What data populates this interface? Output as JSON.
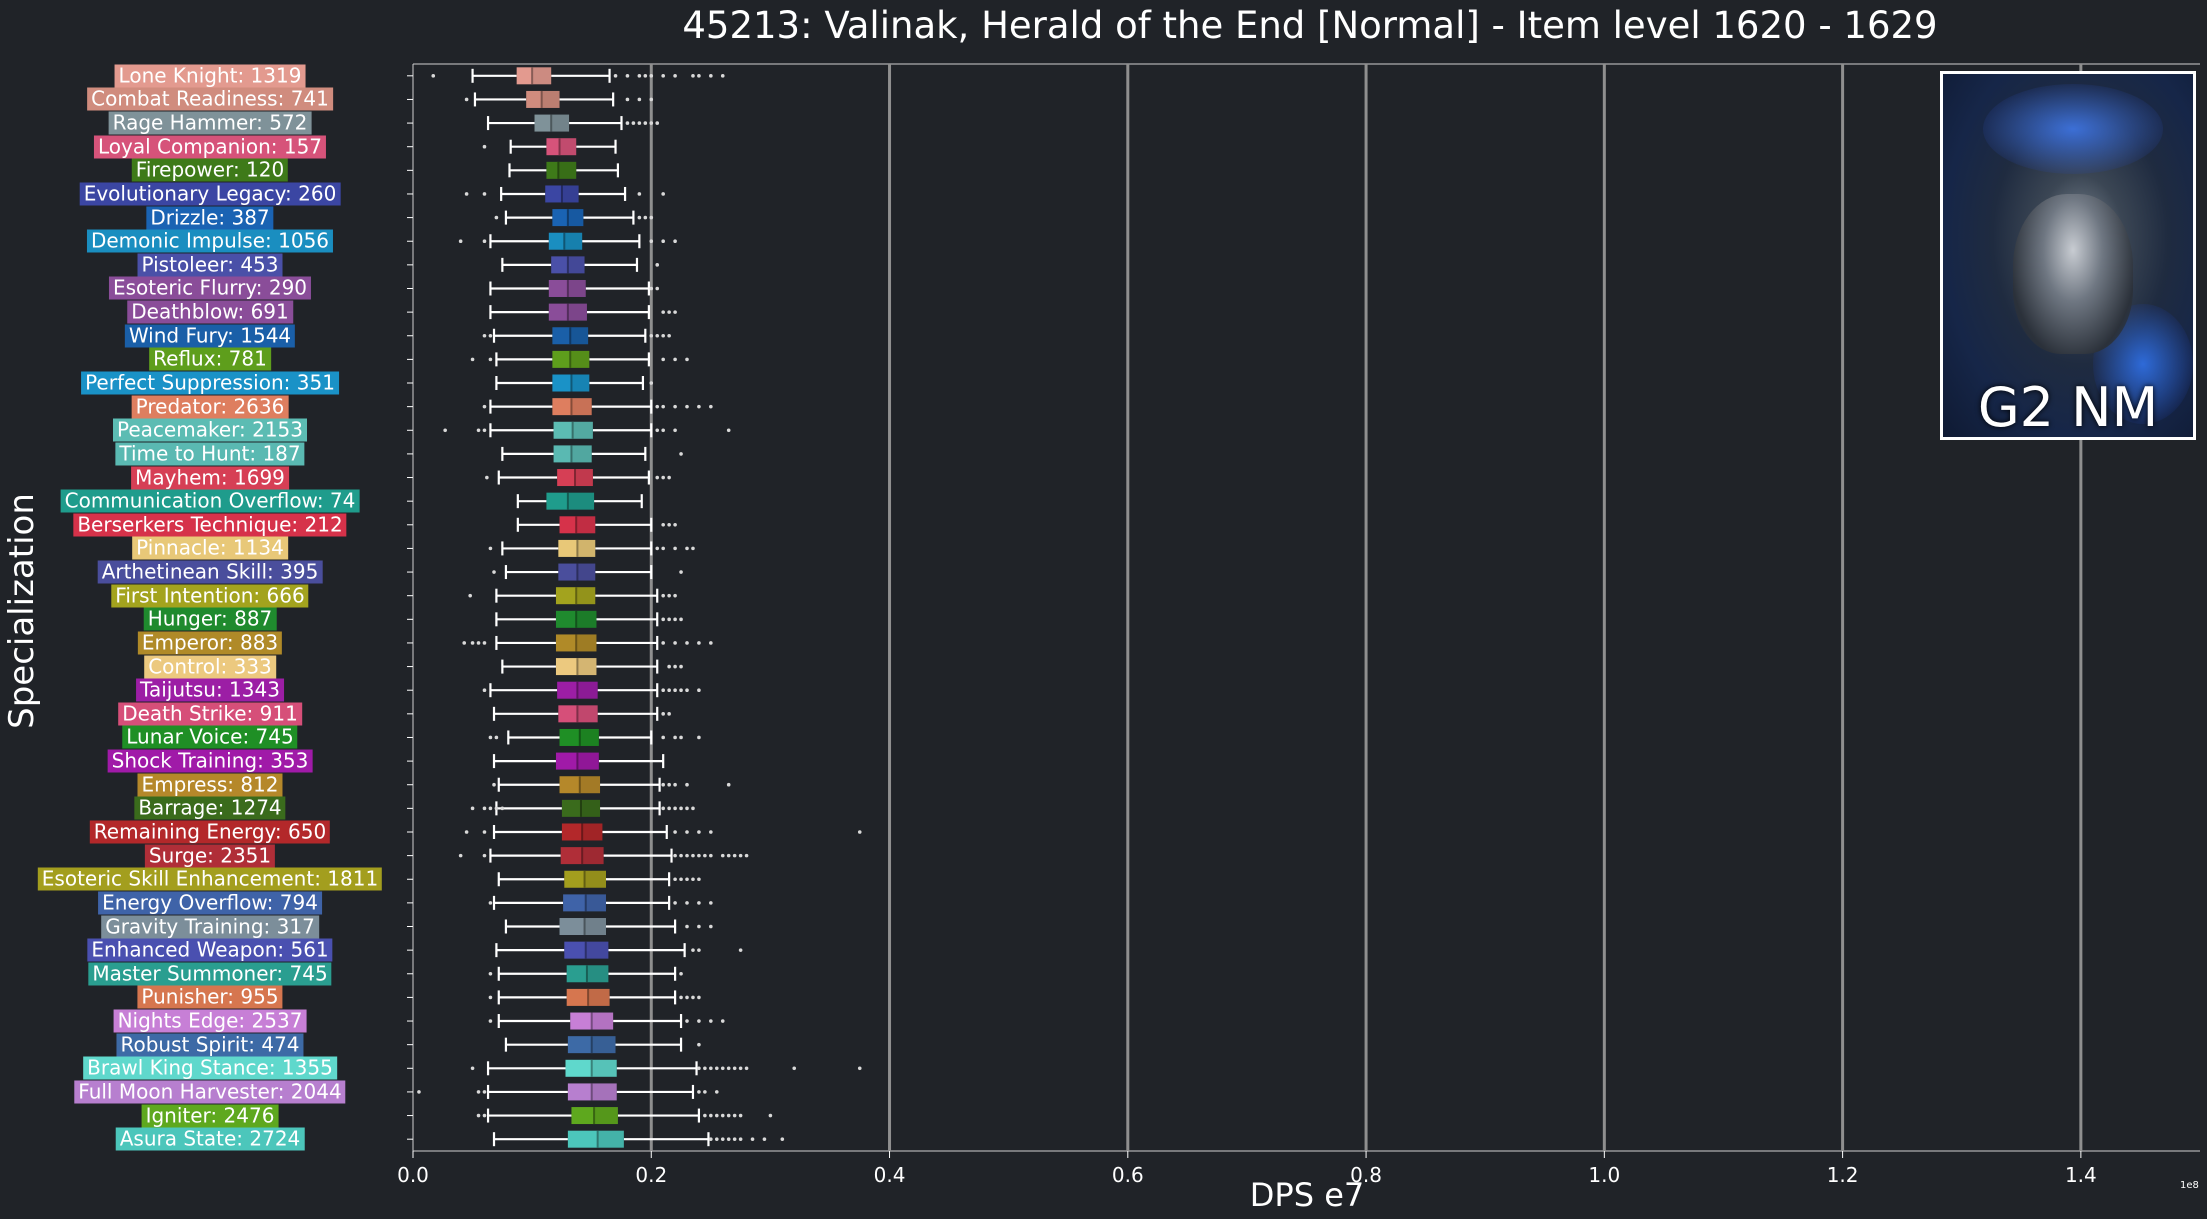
{
  "chart_data": {
    "type": "boxplot",
    "title": "45213: Valinak, Herald of the End [Normal] - Item level 1620 - 1629",
    "xlabel": "DPS e7",
    "ylabel": "Specialization",
    "x_exponent_label": "1e8",
    "xlim": [
      0,
      1.5
    ],
    "xticks": [
      0.0,
      0.2,
      0.4,
      0.6,
      0.8,
      1.0,
      1.2,
      1.4
    ],
    "xtick_labels": [
      "0.0",
      "0.2",
      "0.4",
      "0.6",
      "0.8",
      "1.0",
      "1.2",
      "1.4"
    ],
    "grid": "vertical lines at ticks",
    "categories": [
      {
        "label": "Lone Knight: 1319",
        "color": "#e39a8f",
        "whislo": 0.05,
        "q1": 0.087,
        "med": 0.1,
        "q3": 0.116,
        "whishi": 0.165,
        "outliers": [
          0.017,
          0.17,
          0.18,
          0.19,
          0.195,
          0.2,
          0.21,
          0.22,
          0.235,
          0.24,
          0.25,
          0.26
        ]
      },
      {
        "label": "Combat Readiness: 741",
        "color": "#d08c7e",
        "whislo": 0.052,
        "q1": 0.095,
        "med": 0.108,
        "q3": 0.123,
        "whishi": 0.168,
        "outliers": [
          0.045,
          0.18,
          0.19,
          0.2
        ]
      },
      {
        "label": "Rage Hammer: 572",
        "color": "#7f9299",
        "whislo": 0.063,
        "q1": 0.102,
        "med": 0.116,
        "q3": 0.131,
        "whishi": 0.175,
        "outliers": [
          0.18,
          0.185,
          0.19,
          0.195,
          0.2,
          0.205
        ]
      },
      {
        "label": "Loyal Companion: 157",
        "color": "#d6537a",
        "whislo": 0.082,
        "q1": 0.112,
        "med": 0.123,
        "q3": 0.137,
        "whishi": 0.17,
        "outliers": [
          0.06
        ]
      },
      {
        "label": "Firepower: 120",
        "color": "#3e7a19",
        "whislo": 0.081,
        "q1": 0.112,
        "med": 0.122,
        "q3": 0.137,
        "whishi": 0.172,
        "outliers": []
      },
      {
        "label": "Evolutionary Legacy: 260",
        "color": "#3b46a3",
        "whislo": 0.074,
        "q1": 0.111,
        "med": 0.125,
        "q3": 0.139,
        "whishi": 0.178,
        "outliers": [
          0.045,
          0.06,
          0.19,
          0.21
        ]
      },
      {
        "label": "Drizzle: 387",
        "color": "#1a63b3",
        "whislo": 0.078,
        "q1": 0.117,
        "med": 0.13,
        "q3": 0.143,
        "whishi": 0.185,
        "outliers": [
          0.07,
          0.19,
          0.195,
          0.2
        ]
      },
      {
        "label": "Demonic Impulse: 1056",
        "color": "#1a8ec0",
        "whislo": 0.065,
        "q1": 0.114,
        "med": 0.127,
        "q3": 0.142,
        "whishi": 0.19,
        "outliers": [
          0.04,
          0.06,
          0.2,
          0.21,
          0.22
        ]
      },
      {
        "label": "Pistoleer: 453",
        "color": "#4a50a8",
        "whislo": 0.075,
        "q1": 0.116,
        "med": 0.13,
        "q3": 0.144,
        "whishi": 0.188,
        "outliers": [
          0.205
        ]
      },
      {
        "label": "Esoteric Flurry: 290",
        "color": "#8a4d99",
        "whislo": 0.065,
        "q1": 0.114,
        "med": 0.13,
        "q3": 0.145,
        "whishi": 0.198,
        "outliers": [
          0.2,
          0.205
        ]
      },
      {
        "label": "Deathblow: 691",
        "color": "#8a4d99",
        "whislo": 0.065,
        "q1": 0.114,
        "med": 0.13,
        "q3": 0.146,
        "whishi": 0.198,
        "outliers": [
          0.21,
          0.215,
          0.22
        ]
      },
      {
        "label": "Wind Fury: 1544",
        "color": "#1a5fa8",
        "whislo": 0.068,
        "q1": 0.117,
        "med": 0.132,
        "q3": 0.147,
        "whishi": 0.195,
        "outliers": [
          0.06,
          0.065,
          0.2,
          0.205,
          0.21,
          0.215
        ]
      },
      {
        "label": "Reflux: 781",
        "color": "#5e9e1c",
        "whislo": 0.07,
        "q1": 0.117,
        "med": 0.132,
        "q3": 0.148,
        "whishi": 0.198,
        "outliers": [
          0.05,
          0.065,
          0.21,
          0.22,
          0.23
        ]
      },
      {
        "label": "Perfect Suppression: 351",
        "color": "#1a92c7",
        "whislo": 0.07,
        "q1": 0.117,
        "med": 0.133,
        "q3": 0.148,
        "whishi": 0.193,
        "outliers": [
          0.2
        ]
      },
      {
        "label": "Predator: 2636",
        "color": "#de7e5f",
        "whislo": 0.065,
        "q1": 0.117,
        "med": 0.133,
        "q3": 0.15,
        "whishi": 0.2,
        "outliers": [
          0.06,
          0.205,
          0.21,
          0.22,
          0.23,
          0.24,
          0.25
        ]
      },
      {
        "label": "Peacemaker: 2153",
        "color": "#5cbcb3",
        "whislo": 0.065,
        "q1": 0.118,
        "med": 0.134,
        "q3": 0.151,
        "whishi": 0.2,
        "outliers": [
          0.027,
          0.055,
          0.06,
          0.205,
          0.21,
          0.22,
          0.265
        ]
      },
      {
        "label": "Time to Hunt: 187",
        "color": "#5ab9b2",
        "whislo": 0.075,
        "q1": 0.118,
        "med": 0.133,
        "q3": 0.15,
        "whishi": 0.195,
        "outliers": [
          0.225
        ]
      },
      {
        "label": "Mayhem: 1699",
        "color": "#d63f55",
        "whislo": 0.072,
        "q1": 0.121,
        "med": 0.136,
        "q3": 0.151,
        "whishi": 0.198,
        "outliers": [
          0.062,
          0.205,
          0.21,
          0.215
        ]
      },
      {
        "label": "Communication Overflow: 74",
        "color": "#1f9c8c",
        "whislo": 0.088,
        "q1": 0.112,
        "med": 0.13,
        "q3": 0.152,
        "whishi": 0.192,
        "outliers": []
      },
      {
        "label": "Berserkers Technique: 212",
        "color": "#d6324a",
        "whislo": 0.088,
        "q1": 0.123,
        "med": 0.137,
        "q3": 0.153,
        "whishi": 0.2,
        "outliers": [
          0.21,
          0.215,
          0.22
        ]
      },
      {
        "label": "Pinnacle: 1134",
        "color": "#e8c878",
        "whislo": 0.075,
        "q1": 0.122,
        "med": 0.138,
        "q3": 0.153,
        "whishi": 0.2,
        "outliers": [
          0.065,
          0.205,
          0.21,
          0.22,
          0.23,
          0.235
        ]
      },
      {
        "label": "Arthetinean Skill: 395",
        "color": "#4a4e9c",
        "whislo": 0.078,
        "q1": 0.122,
        "med": 0.138,
        "q3": 0.153,
        "whishi": 0.2,
        "outliers": [
          0.068,
          0.225
        ]
      },
      {
        "label": "First Intention: 666",
        "color": "#a3a31e",
        "whislo": 0.07,
        "q1": 0.12,
        "med": 0.137,
        "q3": 0.153,
        "whishi": 0.205,
        "outliers": [
          0.048,
          0.21,
          0.215,
          0.22
        ]
      },
      {
        "label": "Hunger: 887",
        "color": "#1f8a2e",
        "whislo": 0.07,
        "q1": 0.12,
        "med": 0.137,
        "q3": 0.154,
        "whishi": 0.205,
        "outliers": [
          0.21,
          0.215,
          0.22,
          0.225
        ]
      },
      {
        "label": "Emperor: 883",
        "color": "#b08a28",
        "whislo": 0.07,
        "q1": 0.12,
        "med": 0.137,
        "q3": 0.154,
        "whishi": 0.205,
        "outliers": [
          0.043,
          0.05,
          0.055,
          0.06,
          0.21,
          0.22,
          0.23,
          0.24,
          0.25
        ]
      },
      {
        "label": "Control: 333",
        "color": "#ecc97f",
        "whislo": 0.075,
        "q1": 0.12,
        "med": 0.138,
        "q3": 0.154,
        "whishi": 0.205,
        "outliers": [
          0.215,
          0.22,
          0.225
        ]
      },
      {
        "label": "Taijutsu: 1343",
        "color": "#9c1ea5",
        "whislo": 0.065,
        "q1": 0.121,
        "med": 0.138,
        "q3": 0.155,
        "whishi": 0.205,
        "outliers": [
          0.06,
          0.21,
          0.215,
          0.22,
          0.225,
          0.23,
          0.24
        ]
      },
      {
        "label": "Death Strike: 911",
        "color": "#d64f79",
        "whislo": 0.068,
        "q1": 0.122,
        "med": 0.138,
        "q3": 0.155,
        "whishi": 0.205,
        "outliers": [
          0.21,
          0.215
        ]
      },
      {
        "label": "Lunar Voice: 745",
        "color": "#1f8f25",
        "whislo": 0.08,
        "q1": 0.123,
        "med": 0.14,
        "q3": 0.156,
        "whishi": 0.2,
        "outliers": [
          0.065,
          0.07,
          0.21,
          0.22,
          0.225,
          0.24
        ]
      },
      {
        "label": "Shock Training: 353",
        "color": "#a01aa8",
        "whislo": 0.068,
        "q1": 0.12,
        "med": 0.138,
        "q3": 0.156,
        "whishi": 0.21,
        "outliers": []
      },
      {
        "label": "Empress: 812",
        "color": "#b5882a",
        "whislo": 0.072,
        "q1": 0.123,
        "med": 0.14,
        "q3": 0.157,
        "whishi": 0.207,
        "outliers": [
          0.068,
          0.21,
          0.215,
          0.22,
          0.23,
          0.265
        ]
      },
      {
        "label": "Barrage: 1274",
        "color": "#3a6b1c",
        "whislo": 0.07,
        "q1": 0.125,
        "med": 0.141,
        "q3": 0.157,
        "whishi": 0.207,
        "outliers": [
          0.05,
          0.06,
          0.065,
          0.07,
          0.075,
          0.21,
          0.215,
          0.22,
          0.225,
          0.23,
          0.235
        ]
      },
      {
        "label": "Remaining Energy: 650",
        "color": "#b3282a",
        "whislo": 0.068,
        "q1": 0.125,
        "med": 0.142,
        "q3": 0.159,
        "whishi": 0.213,
        "outliers": [
          0.045,
          0.06,
          0.22,
          0.23,
          0.24,
          0.25,
          0.375
        ]
      },
      {
        "label": "Surge: 2351",
        "color": "#b02e38",
        "whislo": 0.065,
        "q1": 0.124,
        "med": 0.142,
        "q3": 0.16,
        "whishi": 0.217,
        "outliers": [
          0.04,
          0.06,
          0.22,
          0.225,
          0.23,
          0.235,
          0.24,
          0.245,
          0.25,
          0.26,
          0.265,
          0.27,
          0.275,
          0.28
        ]
      },
      {
        "label": "Esoteric Skill Enhancement: 1811",
        "color": "#a39e1e",
        "whislo": 0.072,
        "q1": 0.127,
        "med": 0.144,
        "q3": 0.162,
        "whishi": 0.215,
        "outliers": [
          0.22,
          0.225,
          0.23,
          0.235,
          0.24
        ]
      },
      {
        "label": "Energy Overflow: 794",
        "color": "#3f63a8",
        "whislo": 0.068,
        "q1": 0.126,
        "med": 0.145,
        "q3": 0.162,
        "whishi": 0.215,
        "outliers": [
          0.065,
          0.22,
          0.23,
          0.24,
          0.25
        ]
      },
      {
        "label": "Gravity Training: 317",
        "color": "#7c8e9a",
        "whislo": 0.078,
        "q1": 0.123,
        "med": 0.144,
        "q3": 0.162,
        "whishi": 0.22,
        "outliers": [
          0.23,
          0.24,
          0.25
        ]
      },
      {
        "label": "Enhanced Weapon: 561",
        "color": "#4a50b0",
        "whislo": 0.07,
        "q1": 0.127,
        "med": 0.145,
        "q3": 0.164,
        "whishi": 0.228,
        "outliers": [
          0.235,
          0.24,
          0.275
        ]
      },
      {
        "label": "Master Summoner: 745",
        "color": "#2a9e90",
        "whislo": 0.072,
        "q1": 0.129,
        "med": 0.146,
        "q3": 0.164,
        "whishi": 0.22,
        "outliers": [
          0.065,
          0.225
        ]
      },
      {
        "label": "Punisher: 955",
        "color": "#d6764f",
        "whislo": 0.072,
        "q1": 0.129,
        "med": 0.147,
        "q3": 0.165,
        "whishi": 0.22,
        "outliers": [
          0.065,
          0.225,
          0.23,
          0.235,
          0.24
        ]
      },
      {
        "label": "Nights Edge: 2537",
        "color": "#c77fd6",
        "whislo": 0.072,
        "q1": 0.132,
        "med": 0.15,
        "q3": 0.168,
        "whishi": 0.225,
        "outliers": [
          0.065,
          0.23,
          0.24,
          0.25,
          0.26
        ]
      },
      {
        "label": "Robust Spirit: 474",
        "color": "#3d6aa6",
        "whislo": 0.078,
        "q1": 0.13,
        "med": 0.15,
        "q3": 0.17,
        "whishi": 0.225,
        "outliers": [
          0.24
        ]
      },
      {
        "label": "Brawl King Stance: 1355",
        "color": "#5fd8cc",
        "whislo": 0.063,
        "q1": 0.128,
        "med": 0.15,
        "q3": 0.171,
        "whishi": 0.238,
        "outliers": [
          0.05,
          0.24,
          0.245,
          0.25,
          0.255,
          0.26,
          0.265,
          0.27,
          0.275,
          0.28,
          0.32,
          0.375
        ]
      },
      {
        "label": "Full Moon Harvester: 2044",
        "color": "#b77fcf",
        "whislo": 0.063,
        "q1": 0.13,
        "med": 0.15,
        "q3": 0.171,
        "whishi": 0.235,
        "outliers": [
          0.005,
          0.055,
          0.06,
          0.24,
          0.245,
          0.255
        ]
      },
      {
        "label": "Igniter: 2476",
        "color": "#5ea81e",
        "whislo": 0.063,
        "q1": 0.133,
        "med": 0.152,
        "q3": 0.172,
        "whishi": 0.24,
        "outliers": [
          0.055,
          0.06,
          0.245,
          0.25,
          0.255,
          0.26,
          0.265,
          0.27,
          0.275,
          0.3
        ]
      },
      {
        "label": "Asura State: 2724",
        "color": "#4cc6bb",
        "whislo": 0.068,
        "q1": 0.13,
        "med": 0.155,
        "q3": 0.177,
        "whishi": 0.248,
        "outliers": [
          0.25,
          0.255,
          0.26,
          0.265,
          0.27,
          0.275,
          0.285,
          0.295,
          0.31
        ]
      }
    ]
  },
  "boss_card": {
    "caption": "G2 NM"
  }
}
